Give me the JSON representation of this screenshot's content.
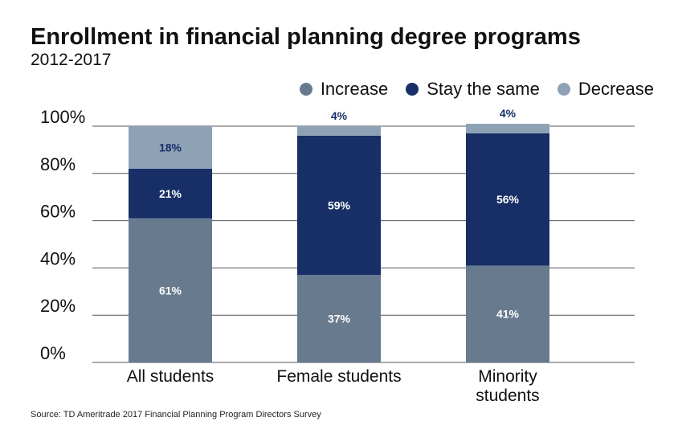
{
  "title": "Enrollment in financial planning degree programs",
  "subtitle": "2012-2017",
  "source": "Source: TD Ameritrade 2017 Financial Planning Program Directors Survey",
  "colors": {
    "increase": "#687a8e",
    "same": "#172f66",
    "decrease": "#8ea2b6",
    "grid": "#555555"
  },
  "legend": [
    {
      "label": "Increase",
      "color": "#687a8e"
    },
    {
      "label": "Stay the same",
      "color": "#172f66"
    },
    {
      "label": "Decrease",
      "color": "#8ea2b6"
    }
  ],
  "chart_data": {
    "type": "bar",
    "stacked": true,
    "title": "Enrollment in financial planning degree programs",
    "subtitle": "2012-2017",
    "categories": [
      "All students",
      "Female students",
      "Minority students"
    ],
    "series": [
      {
        "name": "Increase",
        "values": [
          61,
          37,
          41
        ],
        "labels": [
          "61%",
          "37%",
          "41%"
        ]
      },
      {
        "name": "Stay the same",
        "values": [
          21,
          59,
          56
        ],
        "labels": [
          "21%",
          "59%",
          "56%"
        ]
      },
      {
        "name": "Decrease",
        "values": [
          18,
          4,
          4
        ],
        "labels": [
          "18%",
          "4%",
          "4%"
        ]
      }
    ],
    "yticks": [
      "0%",
      "20%",
      "40%",
      "60%",
      "80%",
      "100%"
    ],
    "ylim": [
      0,
      100
    ],
    "legend_position": "top-right"
  }
}
